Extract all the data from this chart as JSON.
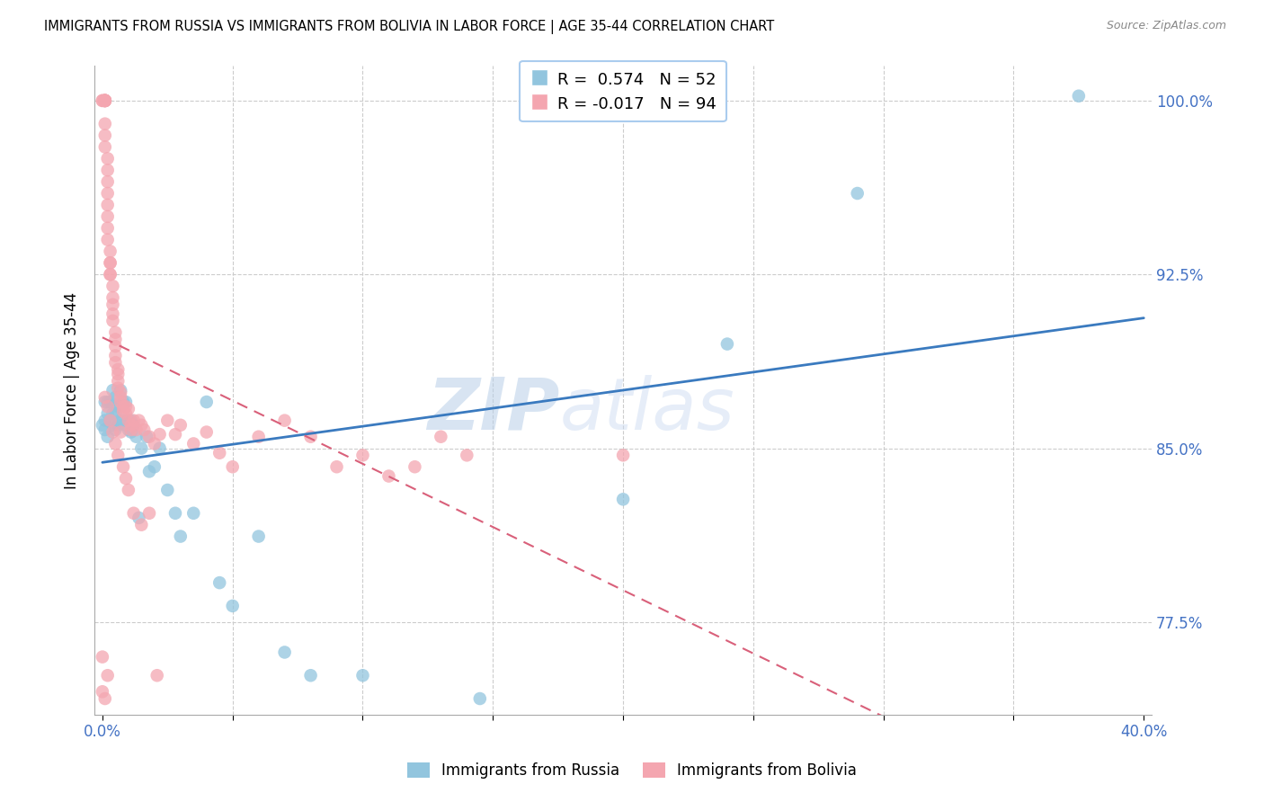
{
  "title": "IMMIGRANTS FROM RUSSIA VS IMMIGRANTS FROM BOLIVIA IN LABOR FORCE | AGE 35-44 CORRELATION CHART",
  "source": "Source: ZipAtlas.com",
  "ylabel": "In Labor Force | Age 35-44",
  "ylim": [
    0.735,
    1.015
  ],
  "xlim": [
    -0.003,
    0.403
  ],
  "legend_R_russia": "0.574",
  "legend_N_russia": "52",
  "legend_R_bolivia": "-0.017",
  "legend_N_bolivia": "94",
  "russia_color": "#92c5de",
  "bolivia_color": "#f4a6b0",
  "russia_line_color": "#3a7abf",
  "bolivia_line_color": "#d9607a",
  "watermark_zip": "ZIP",
  "watermark_atlas": "atlas",
  "russia_x": [
    0.0,
    0.001,
    0.001,
    0.001,
    0.002,
    0.002,
    0.002,
    0.003,
    0.003,
    0.004,
    0.004,
    0.004,
    0.005,
    0.005,
    0.005,
    0.006,
    0.006,
    0.007,
    0.007,
    0.007,
    0.008,
    0.008,
    0.009,
    0.009,
    0.01,
    0.01,
    0.011,
    0.011,
    0.012,
    0.013,
    0.014,
    0.015,
    0.017,
    0.018,
    0.02,
    0.022,
    0.025,
    0.028,
    0.03,
    0.035,
    0.04,
    0.045,
    0.05,
    0.06,
    0.07,
    0.08,
    0.1,
    0.145,
    0.2,
    0.24,
    0.29,
    0.375
  ],
  "russia_y": [
    0.86,
    0.862,
    0.858,
    0.87,
    0.855,
    0.865,
    0.87,
    0.862,
    0.87,
    0.86,
    0.865,
    0.875,
    0.858,
    0.865,
    0.872,
    0.86,
    0.868,
    0.862,
    0.868,
    0.875,
    0.862,
    0.87,
    0.86,
    0.87,
    0.858,
    0.862,
    0.857,
    0.862,
    0.86,
    0.855,
    0.82,
    0.85,
    0.855,
    0.84,
    0.842,
    0.85,
    0.832,
    0.822,
    0.812,
    0.822,
    0.87,
    0.792,
    0.782,
    0.812,
    0.762,
    0.752,
    0.752,
    0.742,
    0.828,
    0.895,
    0.96,
    1.002
  ],
  "bolivia_x": [
    0.0,
    0.0,
    0.001,
    0.001,
    0.001,
    0.001,
    0.001,
    0.001,
    0.001,
    0.001,
    0.001,
    0.001,
    0.001,
    0.002,
    0.002,
    0.002,
    0.002,
    0.002,
    0.002,
    0.002,
    0.002,
    0.003,
    0.003,
    0.003,
    0.003,
    0.003,
    0.004,
    0.004,
    0.004,
    0.004,
    0.004,
    0.005,
    0.005,
    0.005,
    0.005,
    0.005,
    0.006,
    0.006,
    0.006,
    0.006,
    0.007,
    0.007,
    0.007,
    0.008,
    0.008,
    0.009,
    0.009,
    0.01,
    0.01,
    0.011,
    0.011,
    0.012,
    0.013,
    0.014,
    0.015,
    0.016,
    0.018,
    0.02,
    0.022,
    0.025,
    0.028,
    0.03,
    0.035,
    0.04,
    0.045,
    0.05,
    0.06,
    0.07,
    0.08,
    0.09,
    0.1,
    0.11,
    0.12,
    0.13,
    0.14,
    0.2,
    0.001,
    0.002,
    0.003,
    0.004,
    0.005,
    0.006,
    0.007,
    0.008,
    0.009,
    0.01,
    0.012,
    0.015,
    0.018,
    0.021,
    0.0,
    0.001,
    0.0,
    0.002
  ],
  "bolivia_y": [
    1.0,
    1.0,
    1.0,
    1.0,
    1.0,
    1.0,
    1.0,
    1.0,
    1.0,
    1.0,
    0.99,
    0.985,
    0.98,
    0.975,
    0.97,
    0.965,
    0.96,
    0.955,
    0.95,
    0.945,
    0.94,
    0.935,
    0.93,
    0.93,
    0.925,
    0.925,
    0.92,
    0.915,
    0.912,
    0.908,
    0.905,
    0.9,
    0.897,
    0.894,
    0.89,
    0.887,
    0.884,
    0.882,
    0.879,
    0.876,
    0.874,
    0.872,
    0.87,
    0.868,
    0.866,
    0.868,
    0.865,
    0.867,
    0.862,
    0.86,
    0.858,
    0.862,
    0.858,
    0.862,
    0.86,
    0.858,
    0.855,
    0.852,
    0.856,
    0.862,
    0.856,
    0.86,
    0.852,
    0.857,
    0.848,
    0.842,
    0.855,
    0.862,
    0.855,
    0.842,
    0.847,
    0.838,
    0.842,
    0.855,
    0.847,
    0.847,
    0.872,
    0.868,
    0.862,
    0.857,
    0.852,
    0.847,
    0.857,
    0.842,
    0.837,
    0.832,
    0.822,
    0.817,
    0.822,
    0.752,
    0.76,
    0.742,
    0.745,
    0.752
  ]
}
